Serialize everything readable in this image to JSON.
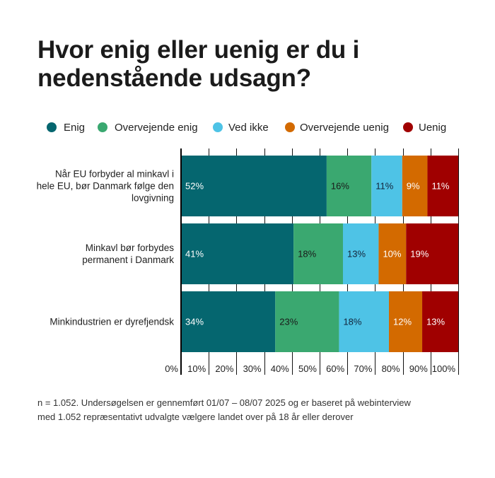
{
  "title": {
    "lines": [
      "Hvor enig eller uenig er du i",
      "nedenstående udsagn?"
    ]
  },
  "legend": [
    {
      "label": "Enig",
      "color": "#05666F"
    },
    {
      "label": "Overvejende enig",
      "color": "#3AA870"
    },
    {
      "label": "Ved ikke",
      "color": "#4EC3E6"
    },
    {
      "label": "Overvejende uenig",
      "color": "#D36A00"
    },
    {
      "label": "Uenig",
      "color": "#A00000"
    }
  ],
  "footnote": {
    "lines": [
      "n = 1.052. Undersøgelsen er gennemført 01/07 – 08/07 2025 og er baseret på webinterview",
      "med 1.052 repræsentativt udvalgte vælgere landet over på 18 år eller derover"
    ]
  },
  "chart_data": {
    "type": "bar",
    "orientation": "horizontal",
    "stacked": true,
    "title": "Hvor enig eller uenig er du i nedenstående udsagn?",
    "xlabel": "",
    "ylabel": "",
    "xlim": [
      0,
      100
    ],
    "grid": true,
    "legend_position": "top",
    "categories": [
      [
        "Når EU forbyder al minkavl i",
        "hele EU, bør Danmark følge den",
        "lovgivning"
      ],
      [
        "Minkavl bør forbydes",
        "permanent i Danmark"
      ],
      [
        "Minkindustrien er dyrefjendsk"
      ]
    ],
    "x_ticks": [
      0,
      10,
      20,
      30,
      40,
      50,
      60,
      70,
      80,
      90,
      100
    ],
    "x_tick_labels": [
      "0%",
      "10%",
      "20%",
      "30%",
      "40%",
      "50%",
      "60%",
      "70%",
      "80%",
      "90%",
      "100%"
    ],
    "series": [
      {
        "name": "Enig",
        "color": "#05666F",
        "label_color": "#ffffff",
        "values": [
          52,
          41,
          34
        ]
      },
      {
        "name": "Overvejende enig",
        "color": "#3AA870",
        "label_color": "#1a1a1a",
        "values": [
          16,
          18,
          23
        ]
      },
      {
        "name": "Ved ikke",
        "color": "#4EC3E6",
        "label_color": "#13243a",
        "values": [
          11,
          13,
          18
        ]
      },
      {
        "name": "Overvejende uenig",
        "color": "#D36A00",
        "label_color": "#ffffff",
        "values": [
          9,
          10,
          12
        ]
      },
      {
        "name": "Uenig",
        "color": "#A00000",
        "label_color": "#ffffff",
        "values": [
          11,
          19,
          13
        ]
      }
    ],
    "value_suffix": "%"
  }
}
